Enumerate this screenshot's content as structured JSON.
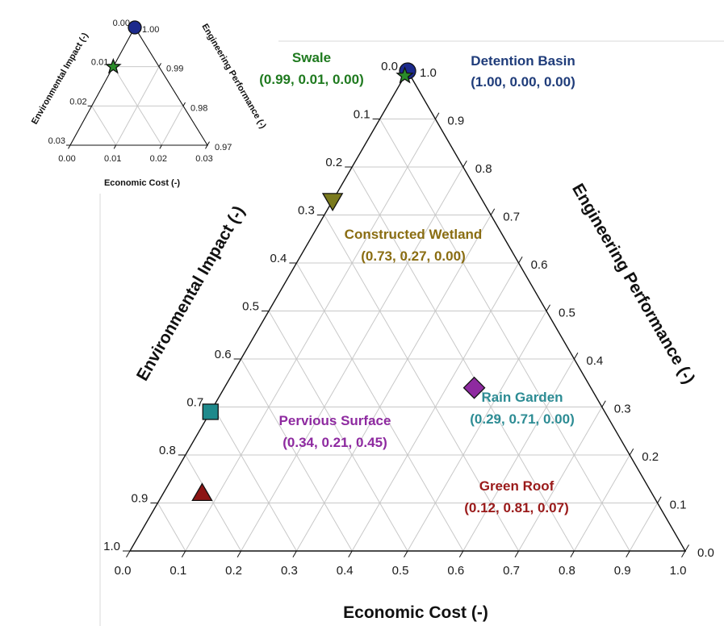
{
  "chart_data": [
    {
      "type": "ternary",
      "axes": {
        "bottom": {
          "label": "Economic Cost (-)",
          "range": [
            0,
            1.0
          ]
        },
        "left": {
          "label": "Environmental Impact (-)",
          "range": [
            0,
            1.0
          ]
        },
        "right": {
          "label": "Engineering Performance (-)",
          "range": [
            0,
            1.0
          ]
        }
      },
      "ticks": {
        "bottom": [
          "0.0",
          "0.1",
          "0.2",
          "0.3",
          "0.4",
          "0.5",
          "0.6",
          "0.7",
          "0.8",
          "0.9",
          "1.0"
        ],
        "left": [
          "0.0",
          "0.1",
          "0.2",
          "0.3",
          "0.4",
          "0.5",
          "0.6",
          "0.7",
          "0.8",
          "0.9",
          "1.0"
        ],
        "right": [
          "0.0",
          "0.1",
          "0.2",
          "0.3",
          "0.4",
          "0.5",
          "0.6",
          "0.7",
          "0.8",
          "0.9",
          "1.0"
        ]
      },
      "grid": true,
      "points": [
        {
          "name": "Detention Basin",
          "label": "(1.00, 0.00, 0.00)",
          "performance": 1.0,
          "impact": 0.0,
          "cost": 0.0,
          "marker": "circle",
          "color": "#1c2a8c",
          "text_color": "#1f3c7a"
        },
        {
          "name": "Constructed Wetland",
          "label": "(0.73, 0.27, 0.00)",
          "performance": 0.73,
          "impact": 0.27,
          "cost": 0.0,
          "marker": "triangle-down",
          "color": "#7a7a1e",
          "text_color": "#8a6d12"
        },
        {
          "name": "Pervious Surface",
          "label": "(0.34, 0.21, 0.45)",
          "performance": 0.34,
          "impact": 0.21,
          "cost": 0.45,
          "marker": "diamond",
          "color": "#8e2aa0",
          "text_color": "#8e2aa0"
        },
        {
          "name": "Rain Garden",
          "label": "(0.29, 0.71, 0.00)",
          "performance": 0.29,
          "impact": 0.71,
          "cost": 0.0,
          "marker": "square",
          "color": "#1f8a8c",
          "text_color": "#2d8c94"
        },
        {
          "name": "Green Roof",
          "label": "(0.12, 0.81, 0.07)",
          "performance": 0.12,
          "impact": 0.81,
          "cost": 0.07,
          "marker": "triangle-up",
          "color": "#8c1414",
          "text_color": "#9a1a1a"
        },
        {
          "name": "Swale",
          "label": "(0.99, 0.01, 0.00)",
          "performance": 0.99,
          "impact": 0.01,
          "cost": 0.0,
          "marker": "star",
          "color": "#2a8c2a",
          "text_color": "#1f7a1f"
        }
      ]
    },
    {
      "type": "ternary",
      "inset": true,
      "axes": {
        "bottom": {
          "label": "Economic Cost (-)",
          "range": [
            0,
            0.03
          ]
        },
        "left": {
          "label": "Environmental Impact (-)",
          "range": [
            0,
            0.03
          ]
        },
        "right": {
          "label": "Engineering Performance (-)",
          "range": [
            0.97,
            1.0
          ]
        }
      },
      "ticks": {
        "bottom": [
          "0.00",
          "0.01",
          "0.02",
          "0.03"
        ],
        "left": [
          "0.00",
          "0.01",
          "0.02",
          "0.03"
        ],
        "right": [
          "0.97",
          "0.98",
          "0.99",
          "1.00"
        ]
      },
      "grid": true,
      "points": [
        {
          "name": "Detention Basin",
          "performance": 1.0,
          "impact": 0.0,
          "cost": 0.0,
          "marker": "circle",
          "color": "#1c2a8c"
        },
        {
          "name": "Swale",
          "performance": 0.99,
          "impact": 0.01,
          "cost": 0.0,
          "marker": "star",
          "color": "#2a8c2a"
        }
      ]
    }
  ],
  "colors": {
    "frame": "#111111",
    "grid": "#c8c8c8",
    "divider": "#d9d9d9"
  }
}
